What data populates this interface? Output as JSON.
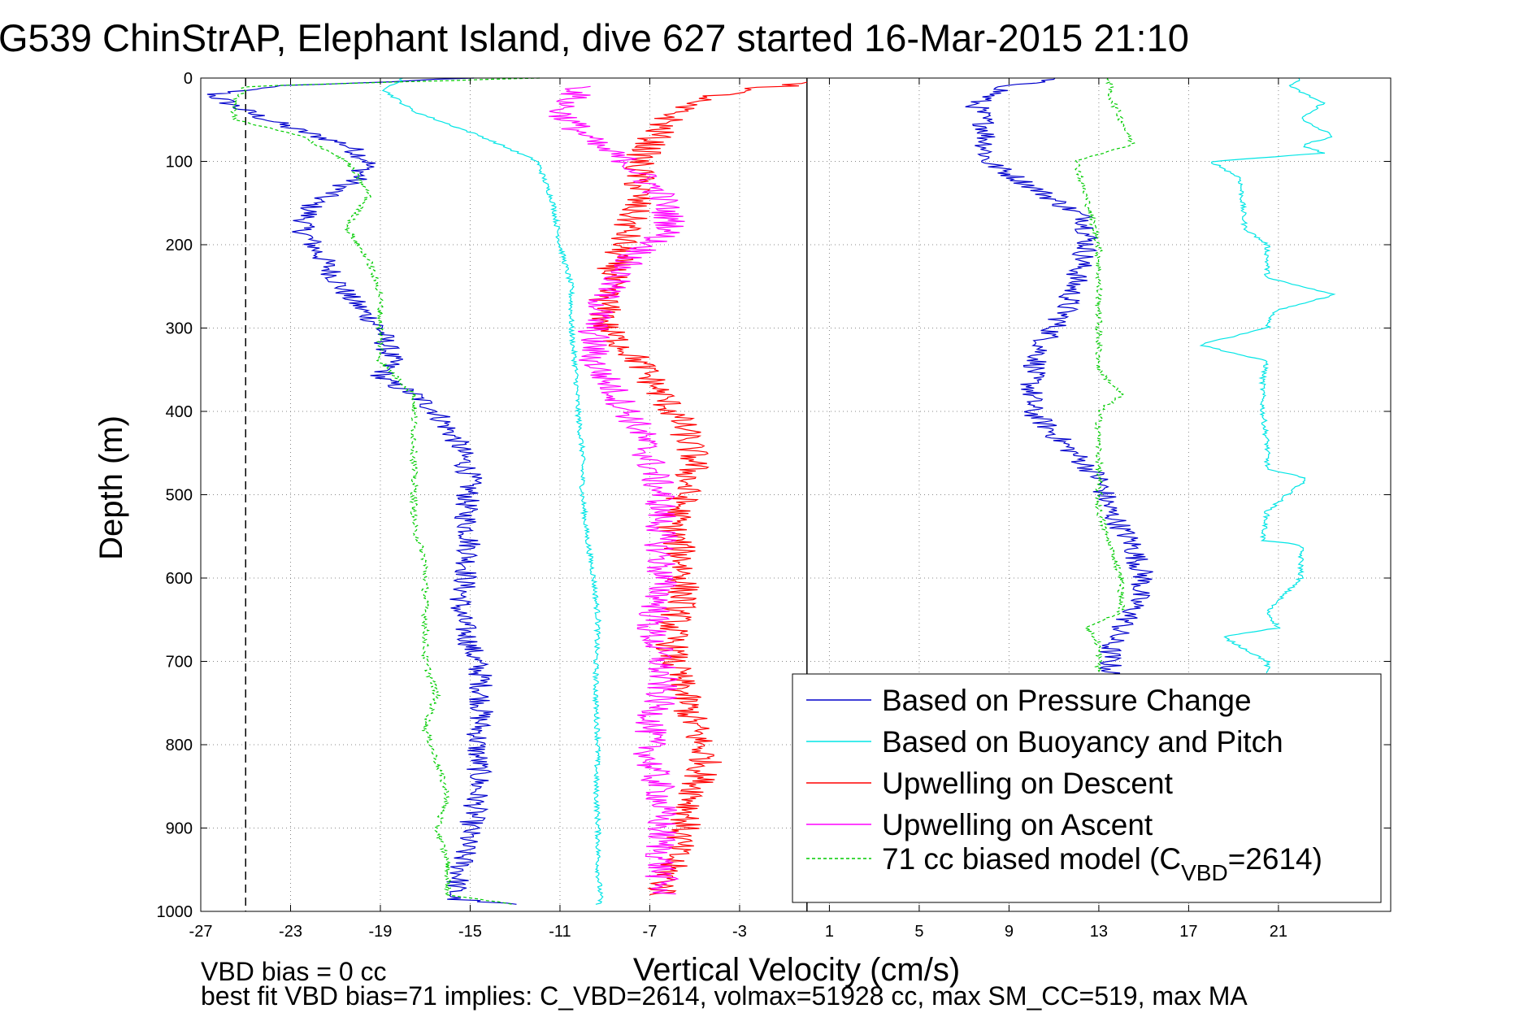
{
  "chart_data": {
    "type": "line",
    "title": "G539 ChinStrAP, Elephant Island, dive 627 started 16-Mar-2015 21:10",
    "xlabel": "Vertical Velocity (cm/s)",
    "ylabel": "Depth (m)",
    "xlim": [
      -27,
      26
    ],
    "ylim": [
      0,
      1000
    ],
    "y_reversed": true,
    "grid": true,
    "x_ticks": [
      -27,
      -23,
      -19,
      -15,
      -11,
      -7,
      -3,
      1,
      5,
      9,
      13,
      17,
      21
    ],
    "y_ticks": [
      0,
      100,
      200,
      300,
      400,
      500,
      600,
      700,
      800,
      900,
      1000
    ],
    "reference_lines": [
      {
        "type": "vertical",
        "x": -25,
        "style": "dashed",
        "color": "#000000"
      },
      {
        "type": "vertical",
        "x": 0,
        "style": "solid",
        "color": "#000000"
      }
    ],
    "legend_position": "bottom-right",
    "series": [
      {
        "name": "Based on Pressure Change",
        "color": "#0000cc",
        "style": "solid",
        "segments": [
          {
            "depth": [
              0,
              10,
              20,
              40,
              60,
              80,
              100,
              120,
              150,
              180,
              220,
              260,
              300,
              340,
              360,
              380,
              400,
              440,
              480,
              520,
              560,
              600,
              640,
              680,
              720,
              760,
              800,
              840,
              880,
              920,
              960,
              985,
              992
            ],
            "x": [
              -15,
              -24,
              -26.5,
              -25,
              -23,
              -20.5,
              -19.5,
              -20,
              -22,
              -22.5,
              -21.5,
              -20.5,
              -19,
              -18.5,
              -19,
              -17.5,
              -16.5,
              -15.5,
              -15,
              -15.2,
              -15,
              -15.2,
              -15.5,
              -15,
              -14.5,
              -14.5,
              -14.7,
              -14.6,
              -14.8,
              -15.2,
              -15.5,
              -15.8,
              -13
            ]
          },
          {
            "depth": [
              0,
              10,
              30,
              60,
              100,
              130,
              170,
              200,
              240,
              280,
              320,
              360,
              400,
              440,
              480,
              520,
              560,
              600,
              640,
              680,
              720
            ],
            "x": [
              11,
              9,
              7.5,
              8,
              8,
              10,
              12.5,
              12.5,
              12,
              11.5,
              10.5,
              10,
              10,
              11.5,
              13,
              13.5,
              14.5,
              15,
              14.5,
              13.5,
              13.5
            ]
          }
        ]
      },
      {
        "name": "Based on Buoyancy and Pitch",
        "color": "#00e5e5",
        "style": "solid",
        "segments": [
          {
            "depth": [
              0,
              15,
              40,
              70,
              100,
              150,
              200,
              250,
              300,
              350,
              400,
              450,
              500,
              550,
              600,
              650,
              700,
              750,
              800,
              850,
              900,
              950,
              985,
              992
            ],
            "x": [
              -18,
              -18.8,
              -17.5,
              -14.5,
              -12,
              -11.3,
              -11,
              -10.5,
              -10.5,
              -10.3,
              -10.2,
              -10,
              -10,
              -9.8,
              -9.5,
              -9.3,
              -9.4,
              -9.4,
              -9.3,
              -9.4,
              -9.3,
              -9.3,
              -9.2,
              -9.3
            ]
          },
          {
            "depth": [
              0,
              10,
              30,
              50,
              70,
              80,
              90,
              100,
              120,
              180,
              200,
              240,
              260,
              280,
              300,
              320,
              340,
              360,
              400,
              440,
              470,
              480,
              520,
              555,
              560,
              600,
              640,
              660,
              670,
              700,
              715
            ],
            "x": [
              22,
              21.5,
              23,
              22,
              23.5,
              22,
              23,
              18,
              19.3,
              19.5,
              20.5,
              20.5,
              23.5,
              20.8,
              20.5,
              17.5,
              20.5,
              20.3,
              20.3,
              20.5,
              20.5,
              22.3,
              20.5,
              20.3,
              22,
              22,
              20.5,
              21,
              18.5,
              20.5,
              20.5
            ]
          }
        ]
      },
      {
        "name": "Upwelling on Descent",
        "color": "#ff0000",
        "style": "solid",
        "segments": [
          {
            "depth": [
              5,
              15,
              30,
              60,
              100,
              140,
              180,
              220,
              260,
              300,
              340,
              380,
              420,
              460,
              500,
              540,
              580,
              620,
              660,
              700,
              740,
              780,
              820,
              860,
              900,
              940,
              980
            ],
            "x": [
              0.5,
              -3,
              -5.5,
              -6.5,
              -7.5,
              -7.5,
              -8,
              -8.5,
              -9,
              -9,
              -7.5,
              -6.5,
              -5.5,
              -5,
              -5.5,
              -6,
              -5.5,
              -5.5,
              -6,
              -6,
              -5.5,
              -5,
              -4.5,
              -5,
              -5.5,
              -6,
              -6.5
            ]
          }
        ]
      },
      {
        "name": "Upwelling on Ascent",
        "color": "#ff00ff",
        "style": "solid",
        "segments": [
          {
            "depth": [
              10,
              40,
              80,
              100,
              140,
              180,
              220,
              260,
              300,
              340,
              380,
              420,
              460,
              500,
              540,
              580,
              620,
              660,
              700,
              740,
              780,
              820,
              860,
              900,
              940,
              980
            ],
            "x": [
              -10,
              -11,
              -9.5,
              -8,
              -6.5,
              -6,
              -8,
              -9,
              -9.5,
              -9.5,
              -8.5,
              -7.5,
              -7,
              -6.5,
              -6.5,
              -6.5,
              -6.5,
              -7,
              -6.5,
              -6.5,
              -7,
              -7,
              -6.5,
              -6.5,
              -6.5,
              -6.5
            ]
          }
        ]
      },
      {
        "name": "71 cc biased model (C_VBD=2614)",
        "color": "#00cc00",
        "style": "dashed",
        "segments": [
          {
            "depth": [
              0,
              10,
              30,
              50,
              70,
              100,
              140,
              180,
              220,
              260,
              300,
              340,
              380,
              420,
              460,
              500,
              540,
              580,
              620,
              660,
              700,
              740,
              780,
              820,
              860,
              900,
              940,
              980,
              992
            ],
            "x": [
              -12,
              -25,
              -25.5,
              -25.5,
              -22.5,
              -20.5,
              -19.5,
              -20.5,
              -19.5,
              -19,
              -19,
              -19,
              -17.5,
              -17.5,
              -17.5,
              -17.5,
              -17.5,
              -17,
              -17,
              -17,
              -17,
              -16.5,
              -17,
              -16.5,
              -16,
              -16.5,
              -16,
              -16,
              -13
            ]
          },
          {
            "depth": [
              0,
              20,
              50,
              80,
              100,
              150,
              200,
              250,
              300,
              350,
              380,
              400,
              440,
              480,
              520,
              560,
              600,
              640,
              660,
              680,
              700,
              715
            ],
            "x": [
              13.5,
              13.5,
              14,
              14.5,
              12,
              12.5,
              13,
              13,
              13,
              13,
              14,
              13,
              13,
              13,
              13,
              13.5,
              14,
              14,
              12.5,
              13,
              13,
              13
            ]
          }
        ]
      }
    ],
    "legend": [
      {
        "label": "Based on Pressure Change",
        "color": "#0000cc",
        "style": "solid"
      },
      {
        "label": "Based on Buoyancy and Pitch",
        "color": "#00e5e5",
        "style": "solid"
      },
      {
        "label": "Upwelling on Descent",
        "color": "#ff0000",
        "style": "solid"
      },
      {
        "label": "Upwelling on Ascent",
        "color": "#ff00ff",
        "style": "solid"
      },
      {
        "label": "71 cc biased model (C",
        "sub": "VBD",
        "suffix": "=2614)",
        "color": "#00cc00",
        "style": "dashed"
      }
    ],
    "annotations": [
      "VBD bias = 0 cc",
      "best fit VBD bias=71 implies: C_VBD=2614, volmax=51928 cc, max SM_CC=519, max MA"
    ]
  }
}
